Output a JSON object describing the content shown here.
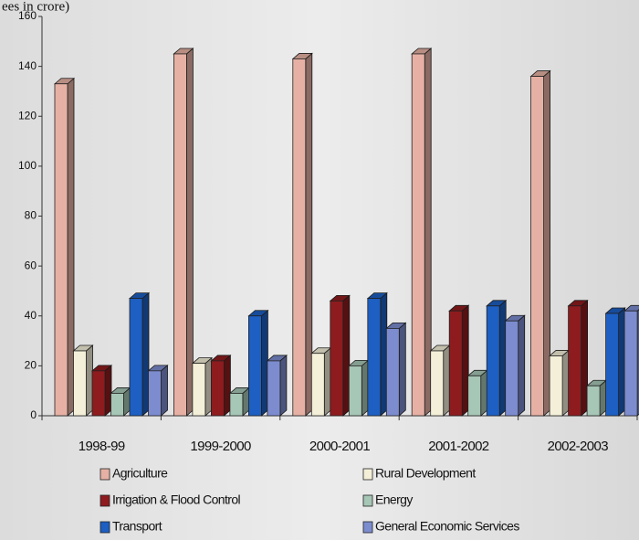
{
  "chart_data": {
    "type": "bar3d",
    "y_axis_label": "ees in crore)",
    "categories": [
      "1998-99",
      "1999-2000",
      "2000-2001",
      "2001-2002",
      "2002-2003"
    ],
    "series": [
      {
        "name": "Agriculture",
        "color": "#e6b1a4",
        "values": [
          133,
          145,
          143,
          145,
          136
        ]
      },
      {
        "name": "Rural Development",
        "color": "#f4efd8",
        "values": [
          26,
          21,
          25,
          26,
          24
        ]
      },
      {
        "name": "Irrigation & Flood Control",
        "color": "#8e1b1e",
        "values": [
          18,
          22,
          46,
          42,
          44
        ]
      },
      {
        "name": "Energy",
        "color": "#a6c6b6",
        "values": [
          9,
          9,
          20,
          16,
          12
        ]
      },
      {
        "name": "Transport",
        "color": "#1d5fc2",
        "values": [
          47,
          40,
          47,
          44,
          41
        ]
      },
      {
        "name": "General Economic Services",
        "color": "#7c8ccf",
        "values": [
          18,
          22,
          35,
          38,
          42
        ]
      }
    ],
    "ylim": [
      0,
      160
    ],
    "yticks": [
      0,
      20,
      40,
      60,
      80,
      100,
      120,
      140,
      160
    ]
  }
}
